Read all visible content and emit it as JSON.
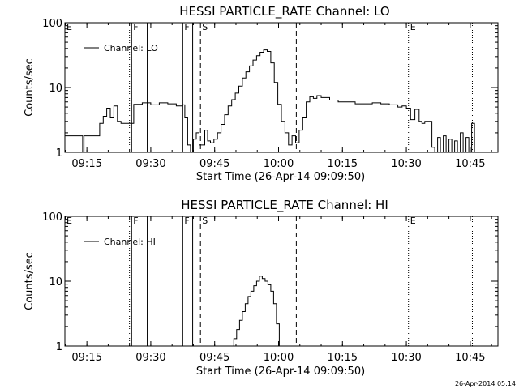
{
  "footer": {
    "timestamp": "26-Apr-2014 05:14"
  },
  "chart_data": [
    {
      "type": "line",
      "title": "HESSI PARTICLE_RATE Channel: LO",
      "xlabel": "Start Time (26-Apr-14 09:09:50)",
      "ylabel": "Counts/sec",
      "xlim": [
        "09:09:50",
        "10:51:30"
      ],
      "ylim": [
        1,
        100
      ],
      "yscale": "log",
      "xtick_labels": [
        "09:15",
        "09:30",
        "09:45",
        "10:00",
        "10:15",
        "10:30",
        "10:45"
      ],
      "ytick_labels": [
        "1",
        "10",
        "100"
      ],
      "legend": {
        "placement": "top-left",
        "entries": [
          "Channel: LO"
        ]
      },
      "grid": false,
      "colors": {
        "line": "#000000",
        "background": "#ffffff"
      },
      "markers": [
        {
          "label": "E",
          "x": "09:09:50",
          "style": "dotted"
        },
        {
          "label": "",
          "x": "09:25:00",
          "style": "dotted"
        },
        {
          "label": "F",
          "x": "09:25:30",
          "style": "solid"
        },
        {
          "label": "",
          "x": "09:29:10",
          "style": "solid"
        },
        {
          "label": "F",
          "x": "09:37:30",
          "style": "solid"
        },
        {
          "label": "",
          "x": "09:39:50",
          "style": "solid"
        },
        {
          "label": "S",
          "x": "09:41:40",
          "style": "dashed"
        },
        {
          "label": "",
          "x": "10:04:10",
          "style": "dashed"
        },
        {
          "label": "E",
          "x": "10:30:30",
          "style": "dotted"
        },
        {
          "label": "",
          "x": "10:45:30",
          "style": "dotted"
        }
      ],
      "series": [
        {
          "name": "Channel: LO",
          "x": [
            "09:09:50",
            "09:11:30",
            "09:13:10",
            "09:14:00",
            "09:14:20",
            "09:15:30",
            "09:17:10",
            "09:18:00",
            "09:18:50",
            "09:19:40",
            "09:20:30",
            "09:21:20",
            "09:22:10",
            "09:23:00",
            "09:24:00",
            "09:25:00",
            "09:26:00",
            "09:28:00",
            "09:30:00",
            "09:32:00",
            "09:34:00",
            "09:36:00",
            "09:37:30",
            "09:38:00",
            "09:38:40",
            "09:39:20",
            "09:40:00",
            "09:40:40",
            "09:41:20",
            "09:42:00",
            "09:42:40",
            "09:43:20",
            "09:44:00",
            "09:44:50",
            "09:45:40",
            "09:46:30",
            "09:47:20",
            "09:48:10",
            "09:49:00",
            "09:49:50",
            "09:50:40",
            "09:51:30",
            "09:52:20",
            "09:53:10",
            "09:54:00",
            "09:54:50",
            "09:55:40",
            "09:56:30",
            "09:57:20",
            "09:58:10",
            "09:59:00",
            "09:59:50",
            "10:00:40",
            "10:01:30",
            "10:02:20",
            "10:03:10",
            "10:04:00",
            "10:04:50",
            "10:05:40",
            "10:06:30",
            "10:07:20",
            "10:08:10",
            "10:09:00",
            "10:10:00",
            "10:12:00",
            "10:14:00",
            "10:16:00",
            "10:18:00",
            "10:20:00",
            "10:22:00",
            "10:24:00",
            "10:26:00",
            "10:28:00",
            "10:29:00",
            "10:30:00",
            "10:31:00",
            "10:32:00",
            "10:33:00",
            "10:33:40",
            "10:34:20",
            "10:36:00",
            "10:36:40",
            "10:37:20",
            "10:38:00",
            "10:38:40",
            "10:39:20",
            "10:40:00",
            "10:40:40",
            "10:41:20",
            "10:42:00",
            "10:42:40",
            "10:43:20",
            "10:44:00",
            "10:44:40",
            "10:45:20",
            "10:46:00"
          ],
          "values": [
            1.8,
            1.8,
            1.8,
            1.0,
            1.8,
            1.8,
            1.8,
            2.8,
            3.6,
            4.8,
            3.5,
            5.2,
            3.0,
            2.8,
            2.8,
            2.8,
            5.5,
            5.8,
            5.4,
            5.8,
            5.6,
            5.2,
            5.4,
            3.5,
            1.3,
            1.0,
            1.6,
            2.0,
            1.3,
            1.3,
            2.2,
            1.5,
            1.4,
            1.6,
            2.0,
            2.7,
            3.8,
            5.2,
            6.5,
            8.2,
            10.5,
            14.0,
            17.5,
            21.5,
            26.5,
            31.0,
            35.0,
            38.0,
            36.0,
            24.0,
            12.0,
            5.5,
            3.0,
            2.0,
            1.3,
            1.8,
            1.4,
            2.2,
            3.5,
            6.0,
            7.2,
            6.8,
            7.5,
            7.0,
            6.4,
            6.0,
            6.0,
            5.6,
            5.6,
            5.8,
            5.6,
            5.4,
            5.0,
            5.2,
            4.8,
            3.2,
            4.6,
            3.0,
            2.8,
            3.0,
            1.2,
            1.0,
            1.7,
            1.0,
            1.8,
            1.0,
            1.6,
            1.0,
            1.5,
            1.0,
            2.0,
            1.0,
            1.7,
            1.0,
            2.8,
            1.0
          ]
        }
      ]
    },
    {
      "type": "line",
      "title": "HESSI PARTICLE_RATE Channel: HI",
      "xlabel": "Start Time (26-Apr-14 09:09:50)",
      "ylabel": "Counts/sec",
      "xlim": [
        "09:09:50",
        "10:51:30"
      ],
      "ylim": [
        1,
        100
      ],
      "yscale": "log",
      "xtick_labels": [
        "09:15",
        "09:30",
        "09:45",
        "10:00",
        "10:15",
        "10:30",
        "10:45"
      ],
      "ytick_labels": [
        "1",
        "10",
        "100"
      ],
      "legend": {
        "placement": "top-left",
        "entries": [
          "Channel: HI"
        ]
      },
      "grid": false,
      "colors": {
        "line": "#000000",
        "background": "#ffffff"
      },
      "markers": [
        {
          "label": "E",
          "x": "09:09:50",
          "style": "dotted"
        },
        {
          "label": "",
          "x": "09:25:00",
          "style": "dotted"
        },
        {
          "label": "F",
          "x": "09:25:30",
          "style": "solid"
        },
        {
          "label": "",
          "x": "09:29:10",
          "style": "solid"
        },
        {
          "label": "F",
          "x": "09:37:30",
          "style": "solid"
        },
        {
          "label": "",
          "x": "09:39:50",
          "style": "solid"
        },
        {
          "label": "S",
          "x": "09:41:40",
          "style": "dashed"
        },
        {
          "label": "",
          "x": "10:04:10",
          "style": "dashed"
        },
        {
          "label": "E",
          "x": "10:30:30",
          "style": "dotted"
        },
        {
          "label": "",
          "x": "10:45:30",
          "style": "dotted"
        }
      ],
      "series": [
        {
          "name": "Channel: HI",
          "x": [
            "09:48:50",
            "09:49:30",
            "09:50:10",
            "09:50:50",
            "09:51:30",
            "09:52:10",
            "09:52:50",
            "09:53:30",
            "09:54:10",
            "09:54:50",
            "09:55:30",
            "09:56:10",
            "09:56:50",
            "09:57:30",
            "09:58:10",
            "09:58:50",
            "09:59:30",
            "10:00:10"
          ],
          "values": [
            1.0,
            1.3,
            1.8,
            2.5,
            3.4,
            4.5,
            5.8,
            7.0,
            8.5,
            10.0,
            12.0,
            11.0,
            10.0,
            8.8,
            7.0,
            4.5,
            2.2,
            1.0
          ]
        }
      ]
    }
  ]
}
